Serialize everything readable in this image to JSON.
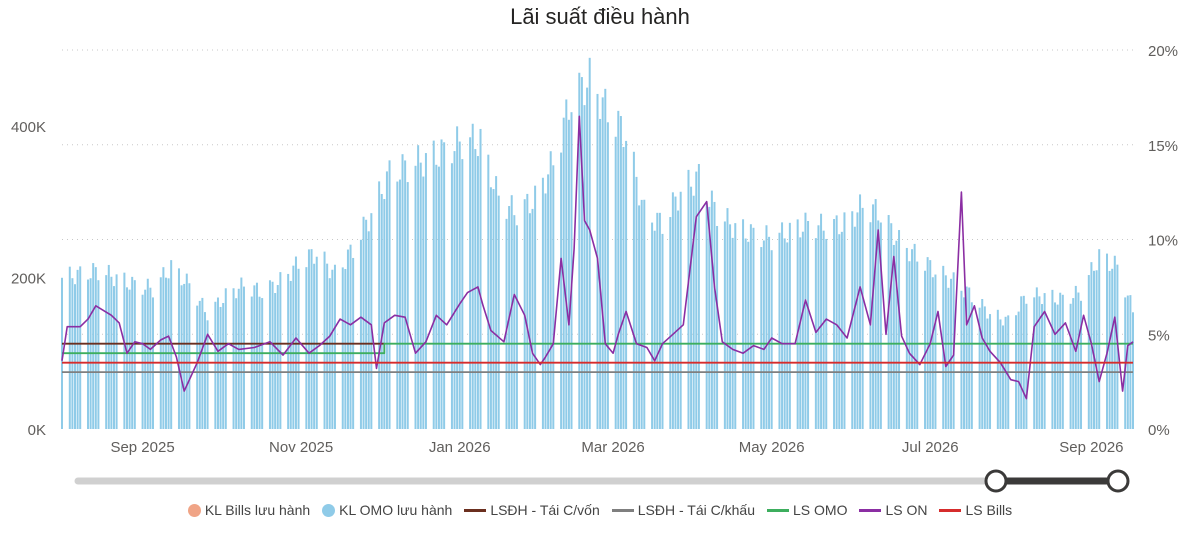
{
  "chart_data": {
    "type": "bar",
    "title": "Lãi suất điều hành",
    "x_tick_labels": [
      "Sep 2025",
      "Nov 2025",
      "Jan 2026",
      "Mar 2026",
      "May 2026",
      "Jul 2026",
      "Sep 2026"
    ],
    "x_ticks": [
      "2025-09-01",
      "2025-11-01",
      "2026-01-01",
      "2026-03-01",
      "2026-05-01",
      "2026-07-01",
      "2026-09-01"
    ],
    "x_range": [
      "2025-08-01",
      "2026-09-17"
    ],
    "y_left": {
      "range": [
        0,
        500000
      ],
      "ticks": [
        0,
        200000,
        400000
      ],
      "tick_labels": [
        "0K",
        "200K",
        "400K"
      ]
    },
    "y_right": {
      "range": [
        0,
        20
      ],
      "ticks": [
        0,
        5,
        10,
        15,
        20
      ],
      "tick_labels": [
        "0%",
        "5%",
        "10%",
        "15%",
        "20%"
      ]
    },
    "grid": true,
    "legend_position": "bottom",
    "bars": {
      "name": "KL OMO lưu hành",
      "color": "#8fcbe8",
      "points": [
        [
          "2025-08-01",
          210000
        ],
        [
          "2025-08-08",
          215000
        ],
        [
          "2025-08-15",
          220000
        ],
        [
          "2025-08-22",
          210000
        ],
        [
          "2025-08-29",
          200000
        ],
        [
          "2025-09-05",
          195000
        ],
        [
          "2025-09-12",
          225000
        ],
        [
          "2025-09-19",
          200000
        ],
        [
          "2025-09-26",
          160000
        ],
        [
          "2025-10-03",
          185000
        ],
        [
          "2025-10-10",
          200000
        ],
        [
          "2025-10-17",
          190000
        ],
        [
          "2025-10-24",
          205000
        ],
        [
          "2025-10-31",
          230000
        ],
        [
          "2025-11-07",
          245000
        ],
        [
          "2025-11-14",
          215000
        ],
        [
          "2025-11-21",
          250000
        ],
        [
          "2025-11-28",
          300000
        ],
        [
          "2025-12-05",
          355000
        ],
        [
          "2025-12-12",
          365000
        ],
        [
          "2025-12-19",
          375000
        ],
        [
          "2025-12-26",
          385000
        ],
        [
          "2026-01-02",
          400000
        ],
        [
          "2026-01-09",
          400000
        ],
        [
          "2026-01-16",
          320000
        ],
        [
          "2026-01-23",
          300000
        ],
        [
          "2026-01-30",
          320000
        ],
        [
          "2026-02-06",
          370000
        ],
        [
          "2026-02-13",
          460000
        ],
        [
          "2026-02-20",
          485000
        ],
        [
          "2026-02-27",
          440000
        ],
        [
          "2026-03-06",
          410000
        ],
        [
          "2026-03-13",
          300000
        ],
        [
          "2026-03-20",
          285000
        ],
        [
          "2026-03-27",
          330000
        ],
        [
          "2026-04-03",
          350000
        ],
        [
          "2026-04-10",
          300000
        ],
        [
          "2026-04-17",
          280000
        ],
        [
          "2026-04-24",
          270000
        ],
        [
          "2026-05-01",
          265000
        ],
        [
          "2026-05-08",
          275000
        ],
        [
          "2026-05-15",
          285000
        ],
        [
          "2026-05-22",
          280000
        ],
        [
          "2026-05-29",
          285000
        ],
        [
          "2026-06-05",
          310000
        ],
        [
          "2026-06-12",
          300000
        ],
        [
          "2026-06-19",
          260000
        ],
        [
          "2026-06-26",
          240000
        ],
        [
          "2026-07-03",
          220000
        ],
        [
          "2026-07-10",
          205000
        ],
        [
          "2026-07-17",
          185000
        ],
        [
          "2026-07-24",
          160000
        ],
        [
          "2026-07-31",
          150000
        ],
        [
          "2026-08-07",
          185000
        ],
        [
          "2026-08-14",
          185000
        ],
        [
          "2026-08-21",
          180000
        ],
        [
          "2026-08-28",
          190000
        ],
        [
          "2026-09-04",
          240000
        ],
        [
          "2026-09-11",
          225000
        ],
        [
          "2026-09-17",
          165000
        ]
      ]
    },
    "series": [
      {
        "name": "KL Bills lưu hành",
        "color": "#f0a486",
        "values": []
      },
      {
        "name": "LSĐH - Tái C/vốn",
        "color": "#6b2f1f",
        "values": [
          [
            "2025-08-01",
            4.5
          ],
          [
            "2025-12-03",
            4.5
          ]
        ]
      },
      {
        "name": "LSĐH - Tái C/khấu",
        "color": "#7f7f7f",
        "values": [
          [
            "2025-08-01",
            3.0
          ],
          [
            "2026-09-17",
            3.0
          ]
        ]
      },
      {
        "name": "LS OMO",
        "color": "#3dae5e",
        "values": [
          [
            "2025-08-01",
            4.0
          ],
          [
            "2025-12-03",
            4.0
          ],
          [
            "2025-12-03",
            4.5
          ],
          [
            "2026-09-17",
            4.5
          ]
        ]
      },
      {
        "name": "LS ON",
        "color": "#8b2ea3",
        "values": [
          [
            "2025-08-01",
            3.6
          ],
          [
            "2025-08-03",
            5.4
          ],
          [
            "2025-08-08",
            5.4
          ],
          [
            "2025-08-11",
            5.8
          ],
          [
            "2025-08-14",
            6.5
          ],
          [
            "2025-08-20",
            6.0
          ],
          [
            "2025-08-23",
            5.6
          ],
          [
            "2025-08-26",
            4.0
          ],
          [
            "2025-08-29",
            4.6
          ],
          [
            "2025-09-01",
            4.5
          ],
          [
            "2025-09-04",
            4.2
          ],
          [
            "2025-09-08",
            4.7
          ],
          [
            "2025-09-11",
            4.9
          ],
          [
            "2025-09-14",
            3.8
          ],
          [
            "2025-09-17",
            2.0
          ],
          [
            "2025-09-22",
            3.5
          ],
          [
            "2025-09-26",
            5.0
          ],
          [
            "2025-09-30",
            4.1
          ],
          [
            "2025-10-04",
            4.5
          ],
          [
            "2025-10-08",
            4.2
          ],
          [
            "2025-10-14",
            4.3
          ],
          [
            "2025-10-20",
            4.6
          ],
          [
            "2025-10-25",
            3.9
          ],
          [
            "2025-10-30",
            4.8
          ],
          [
            "2025-11-04",
            4.0
          ],
          [
            "2025-11-08",
            4.4
          ],
          [
            "2025-11-12",
            4.9
          ],
          [
            "2025-11-16",
            5.8
          ],
          [
            "2025-11-20",
            5.5
          ],
          [
            "2025-11-24",
            5.9
          ],
          [
            "2025-11-28",
            5.5
          ],
          [
            "2025-11-30",
            3.2
          ],
          [
            "2025-12-03",
            5.6
          ],
          [
            "2025-12-07",
            6.0
          ],
          [
            "2025-12-11",
            5.9
          ],
          [
            "2025-12-15",
            4.0
          ],
          [
            "2025-12-19",
            4.6
          ],
          [
            "2025-12-23",
            6.0
          ],
          [
            "2025-12-27",
            5.5
          ],
          [
            "2026-01-01",
            6.6
          ],
          [
            "2026-01-04",
            7.2
          ],
          [
            "2026-01-08",
            7.5
          ],
          [
            "2026-01-10",
            6.5
          ],
          [
            "2026-01-13",
            5.2
          ],
          [
            "2026-01-18",
            4.6
          ],
          [
            "2026-01-22",
            7.1
          ],
          [
            "2026-01-26",
            6.0
          ],
          [
            "2026-01-29",
            4.0
          ],
          [
            "2026-02-01",
            3.4
          ],
          [
            "2026-02-03",
            3.8
          ],
          [
            "2026-02-06",
            4.5
          ],
          [
            "2026-02-09",
            9.0
          ],
          [
            "2026-02-12",
            5.5
          ],
          [
            "2026-02-14",
            9.5
          ],
          [
            "2026-02-16",
            16.5
          ],
          [
            "2026-02-18",
            11.0
          ],
          [
            "2026-02-20",
            10.5
          ],
          [
            "2026-02-23",
            9.0
          ],
          [
            "2026-02-26",
            4.5
          ],
          [
            "2026-03-01",
            4.0
          ],
          [
            "2026-03-03",
            5.0
          ],
          [
            "2026-03-06",
            6.2
          ],
          [
            "2026-03-10",
            4.5
          ],
          [
            "2026-03-14",
            4.3
          ],
          [
            "2026-03-17",
            3.6
          ],
          [
            "2026-03-20",
            4.5
          ],
          [
            "2026-03-24",
            5.0
          ],
          [
            "2026-03-28",
            5.5
          ],
          [
            "2026-04-02",
            11.2
          ],
          [
            "2026-04-06",
            12.0
          ],
          [
            "2026-04-09",
            7.5
          ],
          [
            "2026-04-12",
            4.6
          ],
          [
            "2026-04-16",
            4.2
          ],
          [
            "2026-04-20",
            4.0
          ],
          [
            "2026-04-24",
            4.4
          ],
          [
            "2026-04-28",
            4.2
          ],
          [
            "2026-05-01",
            4.8
          ],
          [
            "2026-05-05",
            4.5
          ],
          [
            "2026-05-10",
            4.5
          ],
          [
            "2026-05-14",
            6.8
          ],
          [
            "2026-05-18",
            5.1
          ],
          [
            "2026-05-22",
            5.8
          ],
          [
            "2026-05-26",
            5.5
          ],
          [
            "2026-05-30",
            4.8
          ],
          [
            "2026-06-04",
            7.5
          ],
          [
            "2026-06-08",
            5.5
          ],
          [
            "2026-06-11",
            10.5
          ],
          [
            "2026-06-14",
            5.0
          ],
          [
            "2026-06-17",
            9.1
          ],
          [
            "2026-06-20",
            4.9
          ],
          [
            "2026-06-23",
            4.0
          ],
          [
            "2026-06-27",
            3.4
          ],
          [
            "2026-07-01",
            4.5
          ],
          [
            "2026-07-04",
            6.2
          ],
          [
            "2026-07-07",
            3.3
          ],
          [
            "2026-07-10",
            3.9
          ],
          [
            "2026-07-13",
            12.5
          ],
          [
            "2026-07-15",
            5.5
          ],
          [
            "2026-07-18",
            6.5
          ],
          [
            "2026-07-21",
            4.8
          ],
          [
            "2026-07-24",
            4.1
          ],
          [
            "2026-07-28",
            3.5
          ],
          [
            "2026-08-01",
            2.6
          ],
          [
            "2026-08-04",
            2.5
          ],
          [
            "2026-08-07",
            1.6
          ],
          [
            "2026-08-10",
            5.4
          ],
          [
            "2026-08-14",
            6.2
          ],
          [
            "2026-08-18",
            5.0
          ],
          [
            "2026-08-22",
            5.6
          ],
          [
            "2026-08-26",
            4.1
          ],
          [
            "2026-08-29",
            6.0
          ],
          [
            "2026-09-01",
            4.5
          ],
          [
            "2026-09-04",
            2.5
          ],
          [
            "2026-09-07",
            4.0
          ],
          [
            "2026-09-10",
            5.9
          ],
          [
            "2026-09-13",
            2.0
          ],
          [
            "2026-09-15",
            4.4
          ],
          [
            "2026-09-17",
            4.6
          ]
        ]
      },
      {
        "name": "LS Bills",
        "color": "#d62c2c",
        "values": [
          [
            "2025-08-01",
            3.5
          ],
          [
            "2026-09-17",
            3.5
          ]
        ]
      }
    ]
  }
}
